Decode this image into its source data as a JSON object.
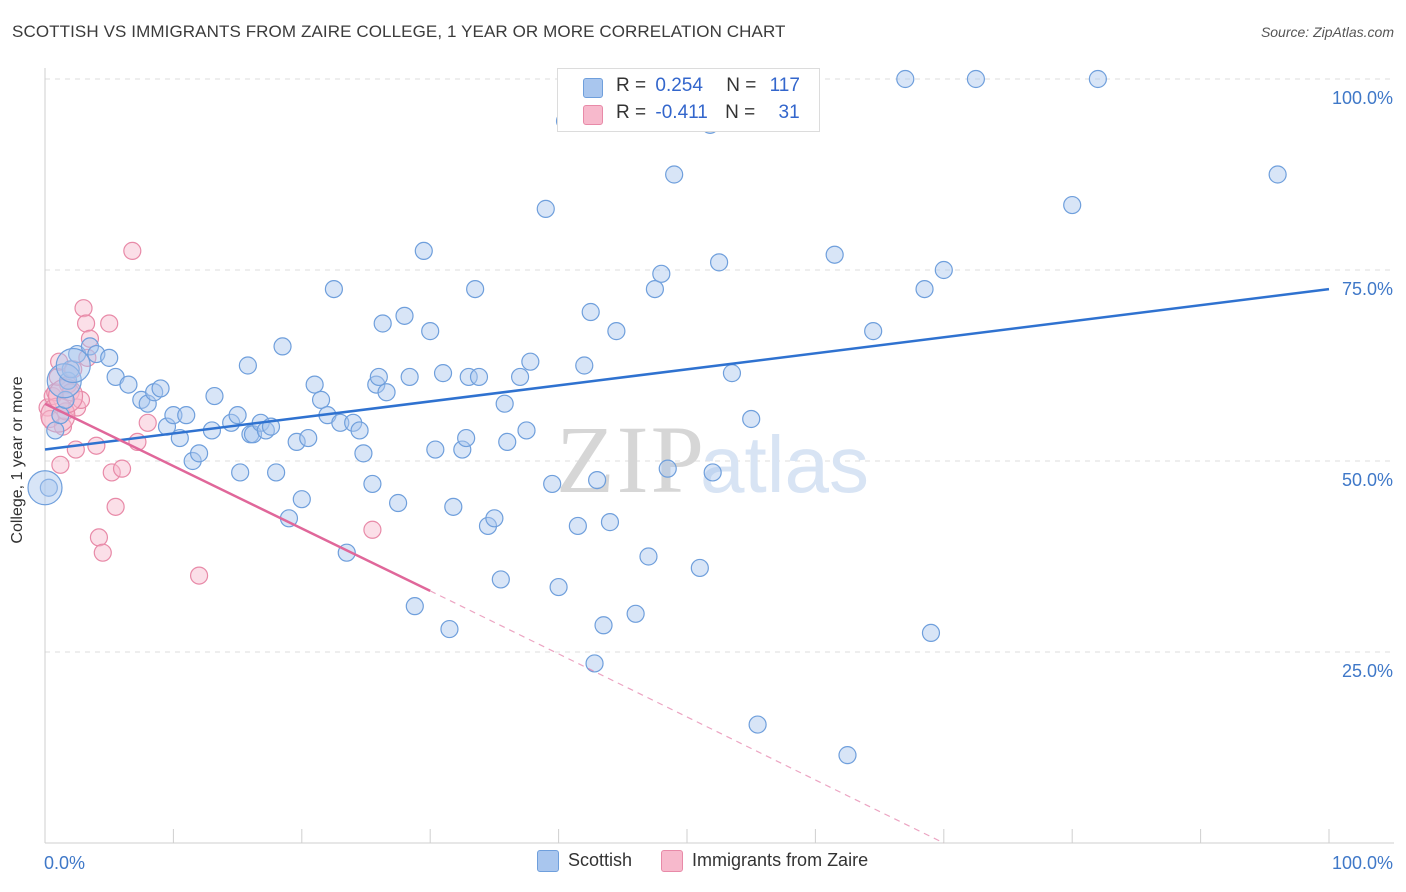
{
  "title": "SCOTTISH VS IMMIGRANTS FROM ZAIRE COLLEGE, 1 YEAR OR MORE CORRELATION CHART",
  "source": "Source: ZipAtlas.com",
  "watermark": {
    "zip": "ZIP",
    "atlas": "atlas"
  },
  "legend_top": [
    {
      "r_label": "R =",
      "r_value": "0.254",
      "n_label": "N =",
      "n_value": "117"
    },
    {
      "r_label": "R =",
      "r_value": "-0.411",
      "n_label": "N =",
      "n_value": "31"
    }
  ],
  "legend_bottom": [
    {
      "label": "Scottish"
    },
    {
      "label": "Immigrants from Zaire"
    }
  ],
  "colors": {
    "scottish_fill": "#a9c6ee",
    "scottish_stroke": "#6f9fdc",
    "scottish_line": "#2f72d0",
    "zaire_fill": "#f7b9cc",
    "zaire_stroke": "#e88aa8",
    "zaire_line": "#e0679a",
    "axis_text": "#3f78c8",
    "grid": "#dddddd"
  },
  "chart_data": {
    "type": "scatter",
    "title": "SCOTTISH VS IMMIGRANTS FROM ZAIRE COLLEGE, 1 YEAR OR MORE CORRELATION CHART",
    "xlabel": "",
    "ylabel": "College, 1 year or more",
    "xlim": [
      0,
      100
    ],
    "ylim": [
      0,
      102
    ],
    "x_tick_labels": [
      "0.0%",
      "100.0%"
    ],
    "y_ticks": [
      25,
      50,
      75,
      100
    ],
    "y_tick_labels": [
      "25.0%",
      "50.0%",
      "75.0%",
      "100.0%"
    ],
    "grid": true,
    "legend_position": "top-center",
    "series": [
      {
        "name": "Scottish",
        "r": 0.254,
        "n": 117,
        "trend": {
          "x": [
            0,
            100
          ],
          "y": [
            51.5,
            72.5
          ],
          "dashed_to": null
        },
        "points": [
          [
            0.3,
            46.5
          ],
          [
            0.8,
            54
          ],
          [
            1.2,
            56
          ],
          [
            1.6,
            58
          ],
          [
            1.8,
            60.5
          ],
          [
            2,
            62
          ],
          [
            2.5,
            64
          ],
          [
            3.5,
            65
          ],
          [
            4,
            64
          ],
          [
            5,
            63.5
          ],
          [
            5.5,
            61
          ],
          [
            6.5,
            60
          ],
          [
            7.5,
            58
          ],
          [
            8,
            57.5
          ],
          [
            8.5,
            59
          ],
          [
            9,
            59.5
          ],
          [
            9.5,
            54.5
          ],
          [
            10,
            56
          ],
          [
            10.5,
            53
          ],
          [
            11,
            56
          ],
          [
            11.5,
            50
          ],
          [
            12,
            51
          ],
          [
            13,
            54
          ],
          [
            13.2,
            58.5
          ],
          [
            14.5,
            55
          ],
          [
            15,
            56
          ],
          [
            15.2,
            48.5
          ],
          [
            15.8,
            62.5
          ],
          [
            16,
            53.5
          ],
          [
            16.2,
            53.5
          ],
          [
            16.8,
            55
          ],
          [
            17.2,
            54
          ],
          [
            17.6,
            54.5
          ],
          [
            18,
            48.5
          ],
          [
            18.5,
            65
          ],
          [
            19,
            42.5
          ],
          [
            19.6,
            52.5
          ],
          [
            20,
            45
          ],
          [
            20.5,
            53
          ],
          [
            21,
            60
          ],
          [
            21.5,
            58
          ],
          [
            22,
            56
          ],
          [
            22.5,
            72.5
          ],
          [
            23,
            55
          ],
          [
            23.5,
            38
          ],
          [
            24,
            55
          ],
          [
            24.5,
            54
          ],
          [
            24.8,
            51
          ],
          [
            25.5,
            47
          ],
          [
            25.8,
            60
          ],
          [
            26,
            61
          ],
          [
            26.3,
            68
          ],
          [
            26.6,
            59
          ],
          [
            27.5,
            44.5
          ],
          [
            28,
            69
          ],
          [
            28.4,
            61
          ],
          [
            28.8,
            31
          ],
          [
            29.5,
            77.5
          ],
          [
            30,
            67
          ],
          [
            30.4,
            51.5
          ],
          [
            31,
            61.5
          ],
          [
            31.5,
            28
          ],
          [
            31.8,
            44
          ],
          [
            32.5,
            51.5
          ],
          [
            32.8,
            53
          ],
          [
            33,
            61
          ],
          [
            33.5,
            72.5
          ],
          [
            33.8,
            61
          ],
          [
            34.5,
            41.5
          ],
          [
            35,
            42.5
          ],
          [
            35.5,
            34.5
          ],
          [
            35.8,
            57.5
          ],
          [
            36,
            52.5
          ],
          [
            37,
            61
          ],
          [
            37.5,
            54
          ],
          [
            37.8,
            63
          ],
          [
            39,
            83
          ],
          [
            39.5,
            47
          ],
          [
            40,
            33.5
          ],
          [
            40.5,
            94.5
          ],
          [
            41.5,
            41.5
          ],
          [
            42,
            62.5
          ],
          [
            42.5,
            69.5
          ],
          [
            42.8,
            23.5
          ],
          [
            43,
            47.5
          ],
          [
            43.5,
            28.5
          ],
          [
            44,
            42
          ],
          [
            44.5,
            67
          ],
          [
            46,
            30
          ],
          [
            47,
            37.5
          ],
          [
            47.5,
            72.5
          ],
          [
            48,
            74.5
          ],
          [
            48.5,
            49
          ],
          [
            49,
            87.5
          ],
          [
            51,
            36
          ],
          [
            51.8,
            94
          ],
          [
            52,
            48.5
          ],
          [
            52.5,
            76
          ],
          [
            53.5,
            61.5
          ],
          [
            55,
            55.5
          ],
          [
            55.5,
            15.5
          ],
          [
            58,
            100
          ],
          [
            59,
            100
          ],
          [
            61.5,
            77
          ],
          [
            62.5,
            11.5
          ],
          [
            64.5,
            67
          ],
          [
            67,
            100
          ],
          [
            68.5,
            72.5
          ],
          [
            69,
            27.5
          ],
          [
            70,
            75
          ],
          [
            72.5,
            100
          ],
          [
            80,
            83.5
          ],
          [
            82,
            100
          ],
          [
            96,
            87.5
          ]
        ],
        "large_points": [
          [
            0,
            46.5
          ],
          [
            1.5,
            60.5
          ],
          [
            2.2,
            62.5
          ]
        ]
      },
      {
        "name": "Immigrants from Zaire",
        "r": -0.411,
        "n": 31,
        "trend": {
          "x": [
            0,
            30
          ],
          "y": [
            57.5,
            33
          ],
          "dashed_to": {
            "x": 70,
            "y": 0
          }
        },
        "points": [
          [
            0.2,
            57
          ],
          [
            0.4,
            55.5
          ],
          [
            0.6,
            58.5
          ],
          [
            0.8,
            59
          ],
          [
            1,
            61
          ],
          [
            1.1,
            63
          ],
          [
            1.2,
            49.5
          ],
          [
            1.4,
            54.5
          ],
          [
            1.6,
            56.5
          ],
          [
            1.8,
            60
          ],
          [
            2,
            59
          ],
          [
            2.2,
            62
          ],
          [
            2.4,
            51.5
          ],
          [
            2.5,
            57
          ],
          [
            2.8,
            58
          ],
          [
            3,
            70
          ],
          [
            3.2,
            68
          ],
          [
            3.3,
            63.5
          ],
          [
            3.5,
            66
          ],
          [
            4,
            52
          ],
          [
            4.2,
            40
          ],
          [
            4.5,
            38
          ],
          [
            5,
            68
          ],
          [
            5.2,
            48.5
          ],
          [
            5.5,
            44
          ],
          [
            6,
            49
          ],
          [
            6.8,
            77.5
          ],
          [
            7.2,
            52.5
          ],
          [
            8,
            55
          ],
          [
            12,
            35
          ],
          [
            25.5,
            41
          ]
        ],
        "large_points": [
          [
            1,
            56
          ],
          [
            1.6,
            58.5
          ]
        ]
      }
    ]
  }
}
